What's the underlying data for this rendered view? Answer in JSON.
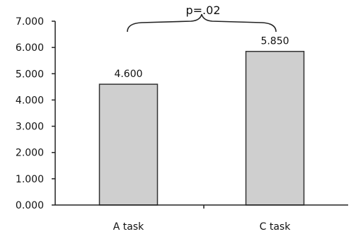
{
  "chart_data": {
    "type": "bar",
    "categories": [
      "A task",
      "C task"
    ],
    "values": [
      4.6,
      5.85
    ],
    "value_labels": [
      "4.600",
      "5.850"
    ],
    "y_ticks": [
      "0.000",
      "1.000",
      "2.000",
      "3.000",
      "4.000",
      "5.000",
      "6.000",
      "7.000"
    ],
    "ylim": [
      0,
      7
    ],
    "annotation": "p=.02",
    "grid": false,
    "bar_color": "#cfcfcf"
  }
}
